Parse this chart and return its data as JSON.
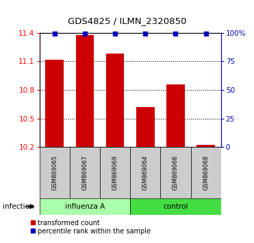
{
  "title": "GDS4825 / ILMN_2320850",
  "samples": [
    "GSM869065",
    "GSM869067",
    "GSM869069",
    "GSM869064",
    "GSM869066",
    "GSM869068"
  ],
  "transformed_counts": [
    11.12,
    11.38,
    11.18,
    10.62,
    10.86,
    10.22
  ],
  "percentile_ranks": [
    99,
    99,
    99,
    99,
    99,
    99
  ],
  "bar_color": "#CC0000",
  "dot_color": "#0000BB",
  "ylim_left": [
    10.2,
    11.4
  ],
  "ylim_right": [
    0,
    100
  ],
  "yticks_left": [
    10.2,
    10.5,
    10.8,
    11.1,
    11.4
  ],
  "yticks_right": [
    0,
    25,
    50,
    75,
    100
  ],
  "ytick_labels_left": [
    "10.2",
    "10.5",
    "10.8",
    "11.1",
    "11.4"
  ],
  "ytick_labels_right": [
    "0",
    "25",
    "50",
    "75",
    "100%"
  ],
  "sample_bg_color": "#CCCCCC",
  "influenza_color": "#AAFFAA",
  "control_color": "#44DD44",
  "factor_label": "infection",
  "group_labels": [
    "influenza A",
    "control"
  ],
  "legend_items": [
    "transformed count",
    "percentile rank within the sample"
  ],
  "legend_colors": [
    "#CC0000",
    "#0000BB"
  ]
}
